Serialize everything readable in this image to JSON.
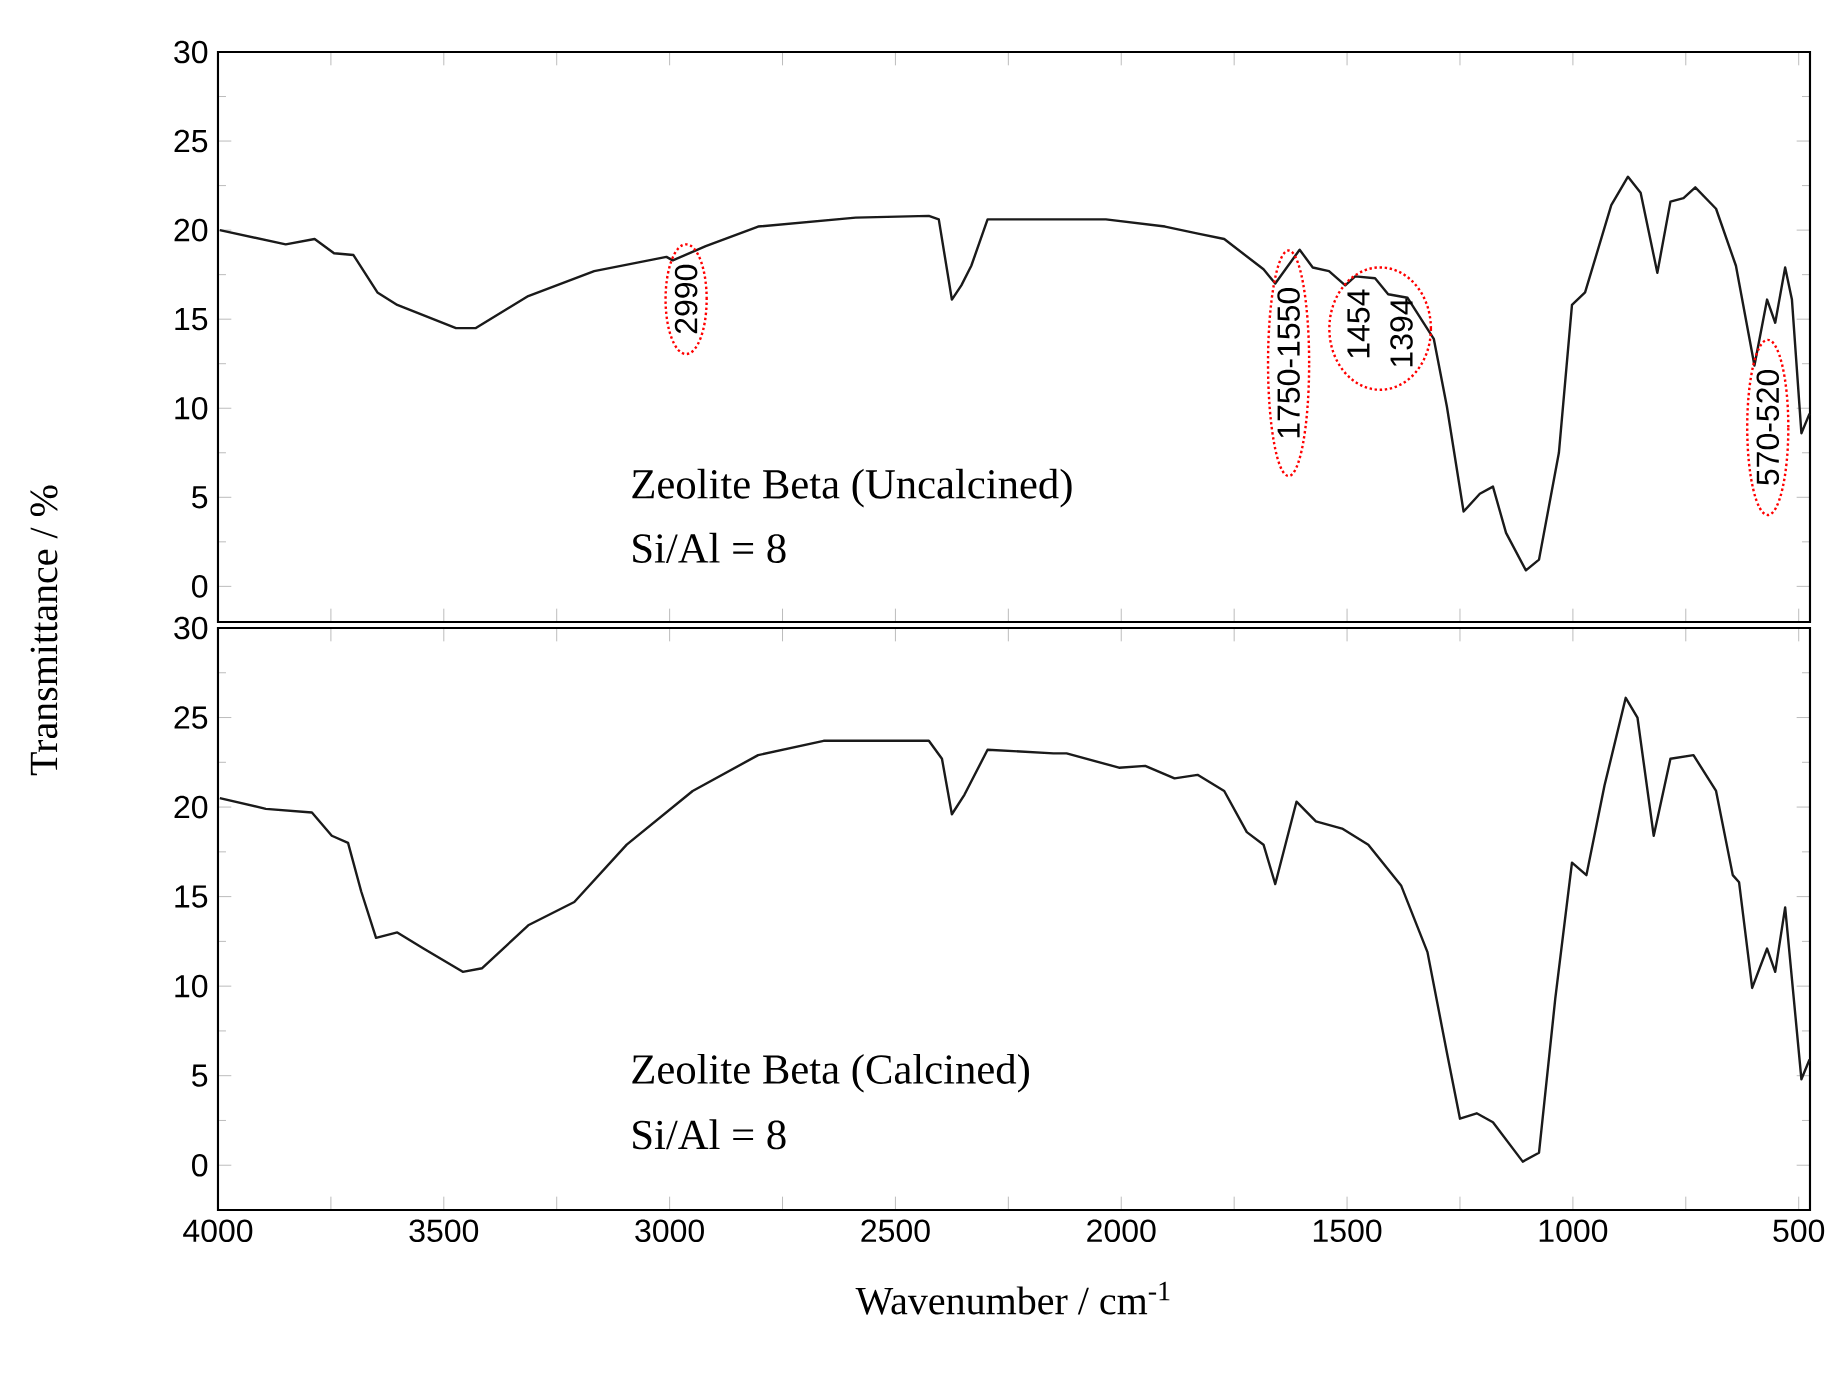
{
  "chart_data": [
    {
      "type": "line",
      "ylabel": "Transmittance / %",
      "color": "#1a1a1a",
      "tick_labels": "y",
      "xlim": [
        4000,
        475
      ],
      "ylim": [
        -2,
        30
      ],
      "xticks": [
        {
          "value": 4000,
          "label": null
        },
        {
          "value": 3750,
          "label": null
        },
        {
          "value": 3500,
          "label": null
        },
        {
          "value": 3250,
          "label": null
        },
        {
          "value": 3000,
          "label": null
        },
        {
          "value": 2750,
          "label": null
        },
        {
          "value": 2500,
          "label": null
        },
        {
          "value": 2250,
          "label": null
        },
        {
          "value": 2000,
          "label": null
        },
        {
          "value": 1750,
          "label": null
        },
        {
          "value": 1500,
          "label": null
        },
        {
          "value": 1250,
          "label": null
        },
        {
          "value": 1000,
          "label": null
        },
        {
          "value": 750,
          "label": null
        },
        {
          "value": 500,
          "label": null
        }
      ],
      "yticks": [
        0,
        5,
        10,
        15,
        20,
        25,
        30
      ],
      "annotations": [
        "Zeolite Beta (Uncalcined)",
        "Si/Al = 8",
        {
          "text": "2990",
          "x": 2993,
          "y": 18.3
        },
        {
          "text": "1750-1550",
          "x": 1659,
          "y": 17.0
        },
        {
          "text": "1454",
          "x": 1504,
          "y": 16.9
        },
        {
          "text": "1394",
          "x": 1409,
          "y": 16.4
        },
        {
          "text": "570-520",
          "x": 598,
          "y": 12.4
        }
      ],
      "x": [
        3996,
        3850,
        3786,
        3743,
        3700,
        3647,
        3603,
        3473,
        3429,
        3313,
        3167,
        3007,
        2993,
        2920,
        2804,
        2588,
        2426,
        2404,
        2375,
        2354,
        2332,
        2296,
        2121,
        2034,
        1903,
        1830,
        1772,
        1685,
        1659,
        1605,
        1576,
        1540,
        1504,
        1482,
        1438,
        1409,
        1366,
        1308,
        1279,
        1242,
        1206,
        1177,
        1148,
        1104,
        1075,
        1031,
        1002,
        973,
        915,
        878,
        850,
        813,
        784,
        755,
        729,
        683,
        639,
        598,
        570,
        552,
        530,
        515,
        494,
        476
      ],
      "values": [
        20.0,
        19.2,
        19.5,
        18.7,
        18.6,
        16.5,
        15.8,
        14.5,
        14.5,
        16.3,
        17.7,
        18.5,
        18.3,
        19.1,
        20.2,
        20.7,
        20.8,
        20.6,
        16.1,
        16.9,
        18.0,
        20.6,
        20.6,
        20.6,
        20.2,
        19.8,
        19.5,
        17.8,
        17.0,
        18.9,
        17.9,
        17.7,
        16.9,
        17.4,
        17.3,
        16.4,
        16.2,
        13.9,
        10.1,
        4.2,
        5.2,
        5.6,
        3.0,
        0.9,
        1.5,
        7.5,
        15.8,
        16.5,
        21.4,
        23.0,
        22.1,
        17.6,
        21.6,
        21.8,
        22.4,
        21.2,
        18.0,
        12.4,
        16.1,
        14.8,
        17.9,
        16.1,
        8.6,
        9.7
      ]
    },
    {
      "type": "line",
      "xlabel": "Wavenumber / cm$^{-1}$",
      "color": "#1a1a1a",
      "xlim": [
        4000,
        475
      ],
      "ylim": [
        -2.5,
        30
      ],
      "xticks": [
        4000,
        {
          "value": 3750,
          "label": null
        },
        3500,
        {
          "value": 3250,
          "label": null
        },
        3000,
        {
          "value": 2750,
          "label": null
        },
        2500,
        {
          "value": 2250,
          "label": null
        },
        2000,
        {
          "value": 1750,
          "label": null
        },
        1500,
        {
          "value": 1250,
          "label": null
        },
        1000,
        {
          "value": 750,
          "label": null
        },
        500
      ],
      "yticks": [
        0,
        5,
        10,
        15,
        20,
        25,
        30
      ],
      "annotations": [
        "Zeolite Beta (Calcined)",
        "Si/Al = 8"
      ],
      "x": [
        3996,
        3894,
        3792,
        3748,
        3712,
        3683,
        3650,
        3603,
        3545,
        3458,
        3415,
        3313,
        3211,
        3095,
        2949,
        2804,
        2659,
        2426,
        2397,
        2375,
        2347,
        2296,
        2150,
        2121,
        2005,
        1947,
        1882,
        1831,
        1772,
        1722,
        1685,
        1659,
        1612,
        1569,
        1511,
        1453,
        1380,
        1322,
        1279,
        1250,
        1213,
        1177,
        1111,
        1075,
        1039,
        1002,
        970,
        930,
        883,
        857,
        821,
        784,
        733,
        683,
        646,
        632,
        603,
        570,
        552,
        530,
        494,
        476
      ],
      "values": [
        20.5,
        19.9,
        19.7,
        18.4,
        18.0,
        15.3,
        12.7,
        13.0,
        12.1,
        10.8,
        11.0,
        13.4,
        14.7,
        17.9,
        20.9,
        22.9,
        23.7,
        23.7,
        22.7,
        19.6,
        20.7,
        23.2,
        23.0,
        23.0,
        22.2,
        22.3,
        21.6,
        21.8,
        20.9,
        18.6,
        17.9,
        15.7,
        20.3,
        19.2,
        18.8,
        17.9,
        15.6,
        11.9,
        6.3,
        2.6,
        2.9,
        2.4,
        0.2,
        0.7,
        9.3,
        16.9,
        16.2,
        21.2,
        26.1,
        25.0,
        18.4,
        22.7,
        22.9,
        20.9,
        16.2,
        15.8,
        9.9,
        12.1,
        10.8,
        14.4,
        4.8,
        5.9
      ]
    }
  ]
}
